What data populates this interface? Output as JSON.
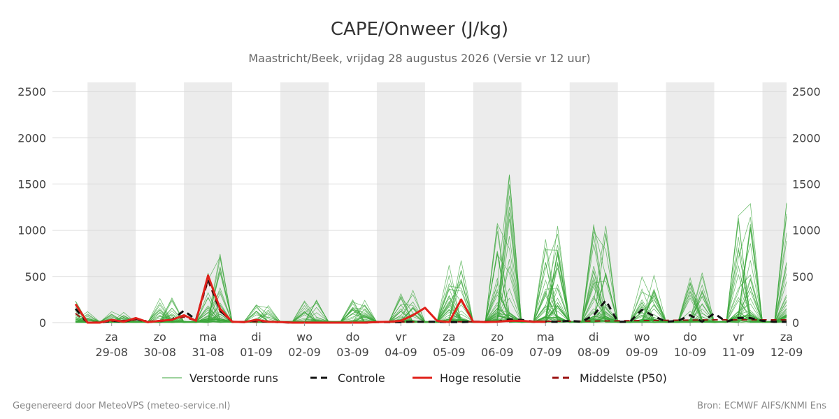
{
  "chart_data": {
    "type": "line",
    "title": "CAPE/Onweer (J/kg)",
    "subtitle": "Maastricht/Beek, vrijdag 28 augustus 2026 (Versie vr 12 uur)",
    "ylim": [
      0,
      2600
    ],
    "yticks": [
      0,
      500,
      1000,
      1500,
      2000,
      2500
    ],
    "grid": true,
    "x_range_days": [
      -0.25,
      14.5
    ],
    "x_ticks": [
      {
        "day": "za",
        "date": "29-08"
      },
      {
        "day": "zo",
        "date": "30-08"
      },
      {
        "day": "ma",
        "date": "31-08"
      },
      {
        "day": "di",
        "date": "01-09"
      },
      {
        "day": "wo",
        "date": "02-09"
      },
      {
        "day": "do",
        "date": "03-09"
      },
      {
        "day": "vr",
        "date": "04-09"
      },
      {
        "day": "za",
        "date": "05-09"
      },
      {
        "day": "zo",
        "date": "06-09"
      },
      {
        "day": "ma",
        "date": "07-09"
      },
      {
        "day": "di",
        "date": "08-09"
      },
      {
        "day": "wo",
        "date": "09-09"
      },
      {
        "day": "do",
        "date": "10-09"
      },
      {
        "day": "vr",
        "date": "11-09"
      },
      {
        "day": "za",
        "date": "12-09"
      }
    ],
    "night_bands": [
      [
        0,
        1
      ],
      [
        2,
        3
      ],
      [
        4,
        5
      ],
      [
        6,
        7
      ],
      [
        8,
        9
      ],
      [
        10,
        11
      ],
      [
        12,
        13
      ],
      [
        14,
        14.5
      ]
    ],
    "legend": [
      {
        "name": "Verstoorde runs",
        "style": "thin",
        "color": "#3aa63a"
      },
      {
        "name": "Controle",
        "style": "dashed",
        "color": "#111111"
      },
      {
        "name": "Hoge resolutie",
        "style": "solid-thick",
        "color": "#e0201a"
      },
      {
        "name": "Middelste (P50)",
        "style": "dashed",
        "color": "#9b1010"
      }
    ],
    "series": [
      {
        "name": "Hoge resolutie",
        "x": [
          -0.25,
          0,
          0.25,
          0.5,
          0.75,
          1,
          1.25,
          1.5,
          1.75,
          2,
          2.25,
          2.5,
          2.75,
          3,
          3.25,
          3.5,
          3.75,
          4,
          4.25,
          4.5,
          4.75,
          5,
          5.25,
          5.5,
          5.75,
          6,
          6.25,
          6.5,
          6.75,
          7,
          7.25,
          7.5,
          7.75,
          8,
          8.25,
          8.5,
          8.75,
          9,
          9.25,
          9.5
        ],
        "values": [
          200,
          0,
          0,
          30,
          10,
          50,
          5,
          20,
          30,
          80,
          20,
          510,
          150,
          10,
          5,
          30,
          10,
          5,
          0,
          0,
          0,
          0,
          0,
          0,
          0,
          5,
          10,
          20,
          80,
          160,
          20,
          5,
          250,
          10,
          5,
          10,
          20,
          20,
          10,
          10
        ]
      },
      {
        "name": "Controle",
        "x": [
          -0.25,
          0,
          0.25,
          0.5,
          0.75,
          1,
          1.25,
          1.5,
          1.75,
          2,
          2.25,
          2.5,
          2.75,
          3,
          3.25,
          3.5,
          3.75,
          4,
          4.25,
          4.5,
          4.75,
          5,
          5.25,
          5.5,
          5.75,
          6,
          6.25,
          6.5,
          6.75,
          7,
          7.25,
          7.5,
          7.75,
          8,
          8.25,
          8.5,
          8.75,
          9,
          9.25,
          9.5,
          9.75,
          10,
          10.25,
          10.5,
          10.75,
          11,
          11.25,
          11.5,
          11.75,
          12,
          12.25,
          12.5,
          12.75,
          13,
          13.25,
          13.5,
          13.75,
          14,
          14.25,
          14.5
        ],
        "values": [
          150,
          0,
          0,
          20,
          10,
          40,
          5,
          20,
          30,
          130,
          30,
          480,
          130,
          10,
          5,
          25,
          10,
          5,
          0,
          0,
          0,
          0,
          0,
          0,
          0,
          5,
          5,
          5,
          10,
          10,
          10,
          5,
          5,
          10,
          10,
          10,
          35,
          30,
          10,
          10,
          10,
          20,
          10,
          80,
          240,
          10,
          10,
          140,
          70,
          10,
          20,
          80,
          10,
          100,
          10,
          50,
          50,
          20,
          10,
          10
        ]
      },
      {
        "name": "Middelste (P50)",
        "x": [
          -0.25,
          0,
          0.5,
          1,
          1.5,
          2,
          2.25,
          2.5,
          2.75,
          3,
          3.5,
          4,
          5,
          6,
          7,
          8,
          9,
          10,
          11,
          12,
          13,
          14,
          14.5
        ],
        "values": [
          100,
          0,
          15,
          30,
          10,
          60,
          20,
          450,
          120,
          10,
          10,
          5,
          0,
          5,
          10,
          10,
          15,
          15,
          20,
          25,
          30,
          30,
          30
        ]
      }
    ]
  },
  "footer": {
    "left": "Gegenereerd door MeteoVPS (meteo-service.nl)",
    "right": "Bron: ECMWF AIFS/KNMI Ens"
  }
}
